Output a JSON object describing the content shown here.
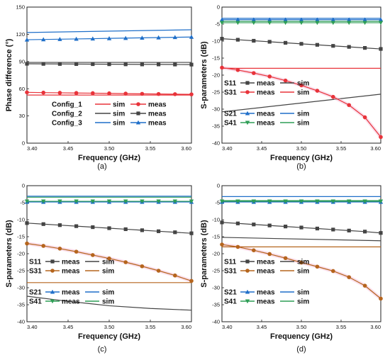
{
  "chart_data": [
    {
      "panel": "a",
      "type": "line",
      "caption": "(a)",
      "xlabel": "Frequency (GHz)",
      "ylabel": "Phase difference (°)",
      "xlim": [
        3.4,
        3.6
      ],
      "ylim": [
        0,
        150
      ],
      "xticks": [
        "3.40",
        "3.45",
        "3.50",
        "3.55",
        "3.60"
      ],
      "yticks": [
        "0",
        "30",
        "60",
        "90",
        "120",
        "150"
      ],
      "legend_placement": "lower-left",
      "legend": [
        {
          "group": "Config_1",
          "a": "sim",
          "b": "meas"
        },
        {
          "group": "Config_2",
          "a": "sim",
          "b": "meas"
        },
        {
          "group": "Config_3",
          "a": "sim",
          "b": "meas"
        }
      ],
      "series": [
        {
          "group": "Config_1",
          "kind": "sim",
          "color": "#e8333a",
          "marker": "none",
          "x": [
            3.4,
            3.6
          ],
          "y": [
            53,
            53
          ]
        },
        {
          "group": "Config_1",
          "kind": "meas",
          "color": "#e8333a",
          "marker": "circle",
          "x": [
            3.4,
            3.42,
            3.44,
            3.46,
            3.48,
            3.5,
            3.52,
            3.54,
            3.56,
            3.58,
            3.6
          ],
          "y": [
            56,
            55.7,
            55.5,
            55.3,
            55.1,
            54.9,
            54.6,
            54.4,
            54.2,
            54,
            53.8
          ]
        },
        {
          "group": "Config_2",
          "kind": "sim",
          "color": "#444444",
          "marker": "none",
          "x": [
            3.4,
            3.6
          ],
          "y": [
            89,
            89
          ]
        },
        {
          "group": "Config_2",
          "kind": "meas",
          "color": "#444444",
          "marker": "square",
          "x": [
            3.4,
            3.42,
            3.44,
            3.46,
            3.48,
            3.5,
            3.52,
            3.54,
            3.56,
            3.58,
            3.6
          ],
          "y": [
            87.5,
            87.4,
            87.3,
            87.2,
            87.1,
            87,
            86.9,
            86.8,
            86.8,
            86.7,
            86.6
          ]
        },
        {
          "group": "Config_3",
          "kind": "sim",
          "color": "#1f6fc9",
          "marker": "none",
          "x": [
            3.4,
            3.6
          ],
          "y": [
            122,
            125
          ]
        },
        {
          "group": "Config_3",
          "kind": "meas",
          "color": "#1f6fc9",
          "marker": "triangle",
          "x": [
            3.4,
            3.42,
            3.44,
            3.46,
            3.48,
            3.5,
            3.52,
            3.54,
            3.56,
            3.58,
            3.6
          ],
          "y": [
            114,
            114.3,
            114.6,
            114.9,
            115.2,
            115.5,
            115.8,
            116.1,
            116.4,
            116.7,
            117
          ]
        }
      ]
    },
    {
      "panel": "b",
      "type": "line",
      "caption": "(b)",
      "xlabel": "Frequency (GHz)",
      "ylabel": "S-parameters (dB)",
      "xlim": [
        3.4,
        3.6
      ],
      "ylim": [
        -40,
        0
      ],
      "xticks": [
        "3.40",
        "3.45",
        "3.50",
        "3.55",
        "3.60"
      ],
      "yticks": [
        "-40",
        "-35",
        "-30",
        "-25",
        "-20",
        "-15",
        "-10",
        "-5",
        "0"
      ],
      "legend_placement": "left",
      "legend": [
        {
          "group": "S11",
          "a": "meas",
          "b": "sim"
        },
        {
          "group": "S31",
          "a": "meas",
          "b": "sim"
        },
        {
          "group": "S21",
          "a": "meas",
          "b": "sim"
        },
        {
          "group": "S41",
          "a": "meas",
          "b": "sim"
        }
      ],
      "series": [
        {
          "group": "S11",
          "kind": "meas",
          "color": "#444444",
          "marker": "square",
          "x": [
            3.4,
            3.42,
            3.44,
            3.46,
            3.48,
            3.5,
            3.52,
            3.54,
            3.56,
            3.58,
            3.6
          ],
          "y": [
            -9.3,
            -9.6,
            -9.9,
            -10.2,
            -10.5,
            -10.8,
            -11.1,
            -11.4,
            -11.7,
            -12,
            -12.3
          ]
        },
        {
          "group": "S11",
          "kind": "sim",
          "color": "#444444",
          "marker": "none",
          "x": [
            3.4,
            3.45,
            3.5,
            3.55,
            3.6
          ],
          "y": [
            -30.8,
            -29.5,
            -28.2,
            -26.9,
            -25.6
          ]
        },
        {
          "group": "S31",
          "kind": "meas",
          "color": "#e8333a",
          "marker": "circle",
          "x": [
            3.4,
            3.42,
            3.44,
            3.46,
            3.48,
            3.5,
            3.52,
            3.54,
            3.56,
            3.58,
            3.6
          ],
          "y": [
            -17.8,
            -18.5,
            -19.4,
            -20.4,
            -21.6,
            -23.0,
            -24.6,
            -26.4,
            -28.8,
            -32.4,
            -38.2
          ]
        },
        {
          "group": "S31",
          "kind": "sim",
          "color": "#e8333a",
          "marker": "none",
          "x": [
            3.4,
            3.6
          ],
          "y": [
            -18,
            -18
          ]
        },
        {
          "group": "S21",
          "kind": "meas",
          "color": "#1f6fc9",
          "marker": "triangle",
          "x": [
            3.4,
            3.42,
            3.44,
            3.46,
            3.48,
            3.5,
            3.52,
            3.54,
            3.56,
            3.58,
            3.6
          ],
          "y": [
            -3.7,
            -3.7,
            -3.7,
            -3.7,
            -3.7,
            -3.7,
            -3.7,
            -3.7,
            -3.7,
            -3.7,
            -3.7
          ]
        },
        {
          "group": "S21",
          "kind": "sim",
          "color": "#1f6fc9",
          "marker": "none",
          "x": [
            3.4,
            3.6
          ],
          "y": [
            -3.3,
            -3.3
          ]
        },
        {
          "group": "S41",
          "kind": "meas",
          "color": "#2f9e56",
          "marker": "triangle-down",
          "x": [
            3.4,
            3.42,
            3.44,
            3.46,
            3.48,
            3.5,
            3.52,
            3.54,
            3.56,
            3.58,
            3.6
          ],
          "y": [
            -4.6,
            -4.6,
            -4.6,
            -4.6,
            -4.6,
            -4.6,
            -4.6,
            -4.6,
            -4.6,
            -4.6,
            -4.6
          ]
        },
        {
          "group": "S41",
          "kind": "sim",
          "color": "#2f9e56",
          "marker": "none",
          "x": [
            3.4,
            3.6
          ],
          "y": [
            -4.2,
            -4.2
          ]
        }
      ]
    },
    {
      "panel": "c",
      "type": "line",
      "caption": "(c)",
      "xlabel": "Frequency (GHz)",
      "ylabel": "S-parameters (dB)",
      "xlim": [
        3.4,
        3.6
      ],
      "ylim": [
        -40,
        0
      ],
      "xticks": [
        "3.40",
        "3.45",
        "3.50",
        "3.55",
        "3.60"
      ],
      "yticks": [
        "-40",
        "-35",
        "-30",
        "-25",
        "-20",
        "-15",
        "-10",
        "-5",
        "0"
      ],
      "legend_placement": "left",
      "legend": [
        {
          "group": "S11",
          "a": "meas",
          "b": "sim"
        },
        {
          "group": "S31",
          "a": "meas",
          "b": "sim"
        },
        {
          "group": "S21",
          "a": "meas",
          "b": "sim"
        },
        {
          "group": "S41",
          "a": "meas",
          "b": "sim"
        }
      ],
      "series": [
        {
          "group": "S11",
          "kind": "meas",
          "color": "#444444",
          "marker": "square",
          "x": [
            3.4,
            3.42,
            3.44,
            3.46,
            3.48,
            3.5,
            3.52,
            3.54,
            3.56,
            3.58,
            3.6
          ],
          "y": [
            -11,
            -11.3,
            -11.6,
            -11.9,
            -12.2,
            -12.5,
            -12.8,
            -13.1,
            -13.4,
            -13.7,
            -14
          ]
        },
        {
          "group": "S11",
          "kind": "sim",
          "color": "#444444",
          "marker": "none",
          "x": [
            3.4,
            3.45,
            3.5,
            3.55,
            3.6
          ],
          "y": [
            -32.5,
            -34,
            -35.3,
            -36.1,
            -36.6
          ]
        },
        {
          "group": "S31",
          "kind": "meas",
          "color": "#b5651d",
          "marker": "circle",
          "x": [
            3.4,
            3.42,
            3.44,
            3.46,
            3.48,
            3.5,
            3.52,
            3.54,
            3.56,
            3.58,
            3.6
          ],
          "y": [
            -17,
            -17.7,
            -18.5,
            -19.4,
            -20.4,
            -21.4,
            -22.5,
            -23.7,
            -25.0,
            -26.4,
            -28.0
          ]
        },
        {
          "group": "S31",
          "kind": "sim",
          "color": "#b5651d",
          "marker": "none",
          "x": [
            3.4,
            3.6
          ],
          "y": [
            -28.5,
            -28.5
          ]
        },
        {
          "group": "S21",
          "kind": "meas",
          "color": "#1f6fc9",
          "marker": "triangle",
          "x": [
            3.4,
            3.42,
            3.44,
            3.46,
            3.48,
            3.5,
            3.52,
            3.54,
            3.56,
            3.58,
            3.6
          ],
          "y": [
            -4.8,
            -4.8,
            -4.8,
            -4.8,
            -4.8,
            -4.8,
            -4.8,
            -4.8,
            -4.8,
            -4.8,
            -4.8
          ]
        },
        {
          "group": "S21",
          "kind": "sim",
          "color": "#1f6fc9",
          "marker": "none",
          "x": [
            3.4,
            3.6
          ],
          "y": [
            -3.1,
            -3.1
          ]
        },
        {
          "group": "S41",
          "kind": "meas",
          "color": "#2f9e56",
          "marker": "triangle-down",
          "x": [
            3.4,
            3.42,
            3.44,
            3.46,
            3.48,
            3.5,
            3.52,
            3.54,
            3.56,
            3.58,
            3.6
          ],
          "y": [
            -4.6,
            -4.6,
            -4.6,
            -4.6,
            -4.6,
            -4.6,
            -4.6,
            -4.6,
            -4.6,
            -4.6,
            -4.6
          ]
        },
        {
          "group": "S41",
          "kind": "sim",
          "color": "#2f9e56",
          "marker": "none",
          "x": [
            3.4,
            3.6
          ],
          "y": [
            -3.4,
            -3.4
          ]
        }
      ]
    },
    {
      "panel": "d",
      "type": "line",
      "caption": "(d)",
      "xlabel": "Frequency (GHz)",
      "ylabel": "S-parameters (dB)",
      "xlim": [
        3.4,
        3.6
      ],
      "ylim": [
        -40,
        0
      ],
      "xticks": [
        "3.40",
        "3.45",
        "3.50",
        "3.55",
        "3.60"
      ],
      "yticks": [
        "-40",
        "-35",
        "-30",
        "-25",
        "-20",
        "-15",
        "-10",
        "-5",
        "0"
      ],
      "legend_placement": "left",
      "legend": [
        {
          "group": "S11",
          "a": "meas",
          "b": "sim"
        },
        {
          "group": "S31",
          "a": "meas",
          "b": "sim"
        },
        {
          "group": "S21",
          "a": "meas",
          "b": "sim"
        },
        {
          "group": "S41",
          "a": "meas",
          "b": "sim"
        }
      ],
      "series": [
        {
          "group": "S11",
          "kind": "meas",
          "color": "#444444",
          "marker": "square",
          "x": [
            3.4,
            3.42,
            3.44,
            3.46,
            3.48,
            3.5,
            3.52,
            3.54,
            3.56,
            3.58,
            3.6
          ],
          "y": [
            -10.8,
            -11.1,
            -11.4,
            -11.7,
            -12,
            -12.3,
            -12.6,
            -12.9,
            -13.2,
            -13.5,
            -13.9
          ]
        },
        {
          "group": "S11",
          "kind": "sim",
          "color": "#444444",
          "marker": "none",
          "x": [
            3.4,
            3.6
          ],
          "y": [
            -15.2,
            -16.2
          ]
        },
        {
          "group": "S31",
          "kind": "meas",
          "color": "#b5651d",
          "marker": "circle",
          "x": [
            3.4,
            3.42,
            3.44,
            3.46,
            3.48,
            3.5,
            3.52,
            3.54,
            3.56,
            3.58,
            3.6
          ],
          "y": [
            -17.3,
            -18.0,
            -19.0,
            -20.1,
            -21.3,
            -22.6,
            -23.8,
            -25.1,
            -26.9,
            -29.4,
            -33.2
          ]
        },
        {
          "group": "S31",
          "kind": "sim",
          "color": "#b5651d",
          "marker": "none",
          "x": [
            3.4,
            3.6
          ],
          "y": [
            -18,
            -18
          ]
        },
        {
          "group": "S21",
          "kind": "meas",
          "color": "#1f6fc9",
          "marker": "triangle",
          "x": [
            3.4,
            3.42,
            3.44,
            3.46,
            3.48,
            3.5,
            3.52,
            3.54,
            3.56,
            3.58,
            3.6
          ],
          "y": [
            -4.8,
            -4.8,
            -4.8,
            -4.8,
            -4.8,
            -4.8,
            -4.8,
            -4.8,
            -4.8,
            -4.8,
            -4.8
          ]
        },
        {
          "group": "S21",
          "kind": "sim",
          "color": "#1f6fc9",
          "marker": "none",
          "x": [
            3.4,
            3.6
          ],
          "y": [
            -3.2,
            -3.2
          ]
        },
        {
          "group": "S41",
          "kind": "meas",
          "color": "#2f9e56",
          "marker": "triangle-down",
          "x": [
            3.4,
            3.42,
            3.44,
            3.46,
            3.48,
            3.5,
            3.52,
            3.54,
            3.56,
            3.58,
            3.6
          ],
          "y": [
            -4.6,
            -4.6,
            -4.6,
            -4.6,
            -4.6,
            -4.6,
            -4.6,
            -4.6,
            -4.6,
            -4.6,
            -4.6
          ]
        },
        {
          "group": "S41",
          "kind": "sim",
          "color": "#2f9e56",
          "marker": "none",
          "x": [
            3.4,
            3.6
          ],
          "y": [
            -4.4,
            -4.4
          ]
        }
      ]
    }
  ]
}
